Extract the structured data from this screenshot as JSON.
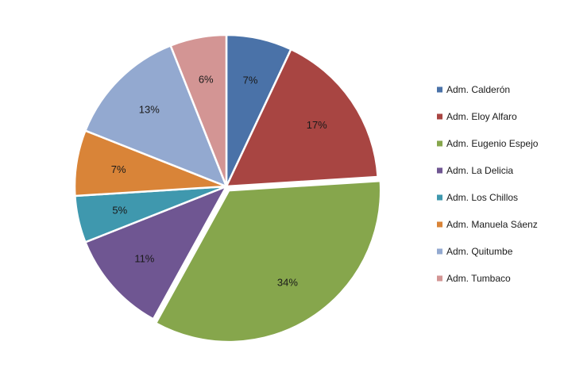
{
  "chart_data": {
    "type": "pie",
    "categories": [
      "Adm. Calderón",
      "Adm. Eloy Alfaro",
      "Adm. Eugenio Espejo",
      "Adm. La Delicia",
      "Adm. Los Chillos",
      "Adm. Manuela Sáenz",
      "Adm. Quitumbe",
      "Adm. Tumbaco"
    ],
    "values": [
      7,
      17,
      34,
      11,
      5,
      7,
      13,
      6
    ],
    "value_labels": [
      "7%",
      "17%",
      "34%",
      "11%",
      "5%",
      "7%",
      "13%",
      "6%"
    ],
    "colors": [
      "#4a72a8",
      "#a84542",
      "#86a64c",
      "#6f5692",
      "#3f98ae",
      "#d98438",
      "#93a9d0",
      "#d39594"
    ],
    "exploded": "Adm. Eugenio Espejo",
    "legend_position": "right",
    "start_angle": "top, clockwise",
    "title": ""
  }
}
